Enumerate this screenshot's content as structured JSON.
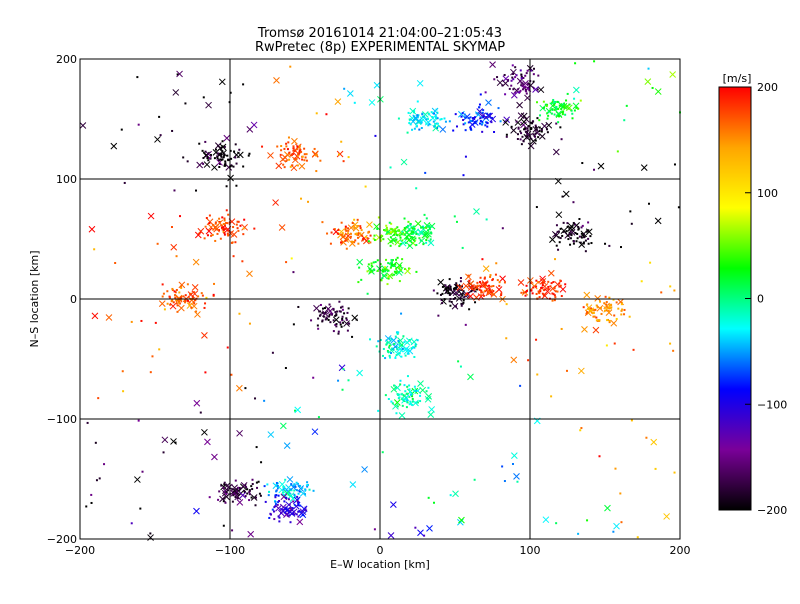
{
  "chart_data": {
    "type": "scatter",
    "title": "Tromsø 20161014 21:04:00–21:05:43",
    "subtitle": "RwPretec (8p) EXPERIMENTAL SKYMAP",
    "xlabel": "E–W location [km]",
    "ylabel": "N–S location [km]",
    "xlim": [
      -200,
      200
    ],
    "ylim": [
      -200,
      200
    ],
    "xticks": [
      -200,
      -100,
      0,
      100,
      200
    ],
    "yticks": [
      -200,
      -100,
      0,
      100,
      200
    ],
    "grid": true,
    "colorbar": {
      "label": "[m/s]",
      "range": [
        -200,
        200
      ],
      "ticks": [
        200,
        100,
        0,
        -100,
        -200
      ],
      "colors": [
        "#000000",
        "#7a0099",
        "#0000ff",
        "#00ffff",
        "#00ff00",
        "#ffff00",
        "#ffa500",
        "#ff0000"
      ],
      "placement": "right"
    },
    "markers": [
      "dot",
      "x"
    ],
    "clusters": [
      {
        "x": -105,
        "y": 60,
        "value": 180
      },
      {
        "x": -55,
        "y": 120,
        "value": 170
      },
      {
        "x": -105,
        "y": 120,
        "value": -200
      },
      {
        "x": -20,
        "y": 55,
        "value": 160
      },
      {
        "x": 10,
        "y": 55,
        "value": 40
      },
      {
        "x": 25,
        "y": 55,
        "value": 10
      },
      {
        "x": 5,
        "y": 25,
        "value": 30
      },
      {
        "x": 30,
        "y": 150,
        "value": -30
      },
      {
        "x": 65,
        "y": 150,
        "value": -80
      },
      {
        "x": 100,
        "y": 140,
        "value": -190
      },
      {
        "x": 95,
        "y": 180,
        "value": -160
      },
      {
        "x": 120,
        "y": 160,
        "value": 20
      },
      {
        "x": 50,
        "y": 5,
        "value": -190
      },
      {
        "x": 70,
        "y": 10,
        "value": 180
      },
      {
        "x": 110,
        "y": 10,
        "value": 190
      },
      {
        "x": 10,
        "y": -40,
        "value": -20
      },
      {
        "x": 20,
        "y": -80,
        "value": -10
      },
      {
        "x": -30,
        "y": -15,
        "value": -180
      },
      {
        "x": -60,
        "y": -160,
        "value": -40
      },
      {
        "x": -60,
        "y": -175,
        "value": -110
      },
      {
        "x": -95,
        "y": -160,
        "value": -180
      },
      {
        "x": -130,
        "y": 0,
        "value": 170
      },
      {
        "x": 130,
        "y": 55,
        "value": -200
      },
      {
        "x": 150,
        "y": -10,
        "value": 150
      }
    ]
  }
}
